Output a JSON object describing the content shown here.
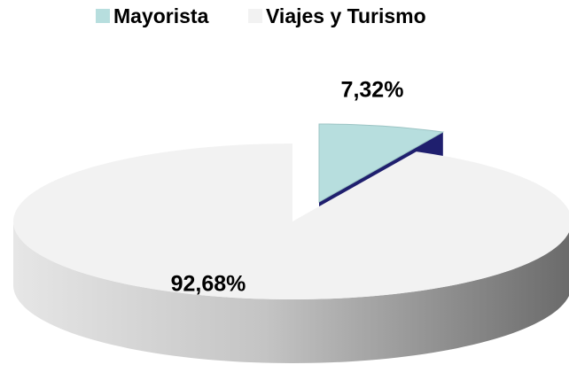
{
  "chart_data": {
    "type": "pie",
    "categories": [
      "Mayorista",
      "Viajes y Turismo"
    ],
    "values": [
      7.32,
      92.68
    ],
    "value_labels": [
      "7,32%",
      "92,68%"
    ],
    "colors": [
      "#b7dede",
      "#f2f2f2"
    ],
    "legend": "top"
  }
}
